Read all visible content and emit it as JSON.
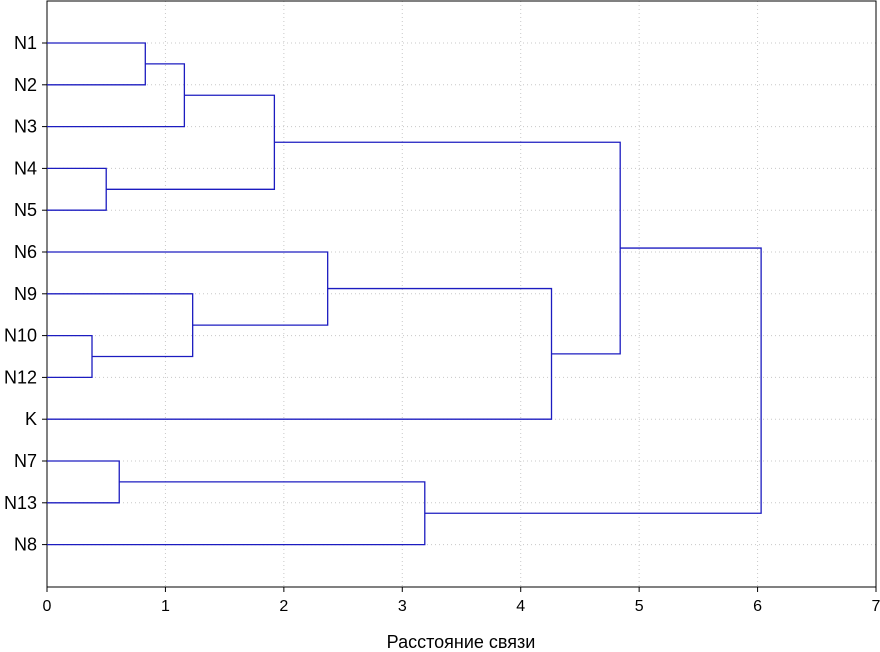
{
  "chart_data": {
    "type": "dendrogram",
    "title": "",
    "xlabel": "Расстояние связи",
    "ylabel": "",
    "xlim": [
      0,
      7
    ],
    "xticks": [
      "0",
      "1",
      "2",
      "3",
      "4",
      "5",
      "6",
      "7"
    ],
    "grid": true,
    "line_color": "#1c1cc0",
    "leaves": [
      "N1",
      "N2",
      "N3",
      "N4",
      "N5",
      "N6",
      "N9",
      "N10",
      "N12",
      "K",
      "N7",
      "N13",
      "N8"
    ],
    "merges": [
      {
        "id": "c1",
        "left": "N1",
        "right": "N2",
        "distance": 0.83
      },
      {
        "id": "c2",
        "left": "c1",
        "right": "N3",
        "distance": 1.16
      },
      {
        "id": "c3",
        "left": "N4",
        "right": "N5",
        "distance": 0.5
      },
      {
        "id": "c4",
        "left": "c2",
        "right": "c3",
        "distance": 1.92
      },
      {
        "id": "c5",
        "left": "N10",
        "right": "N12",
        "distance": 0.38
      },
      {
        "id": "c6",
        "left": "N9",
        "right": "c5",
        "distance": 1.23
      },
      {
        "id": "c7",
        "left": "N6",
        "right": "c6",
        "distance": 2.37
      },
      {
        "id": "c8",
        "left": "c7",
        "right": "K",
        "distance": 4.26
      },
      {
        "id": "c9",
        "left": "c4",
        "right": "c8",
        "distance": 4.84
      },
      {
        "id": "c10",
        "left": "N7",
        "right": "N13",
        "distance": 0.61
      },
      {
        "id": "c11",
        "left": "c10",
        "right": "N8",
        "distance": 3.19
      },
      {
        "id": "c12",
        "left": "c9",
        "right": "c11",
        "distance": 6.03
      }
    ]
  }
}
